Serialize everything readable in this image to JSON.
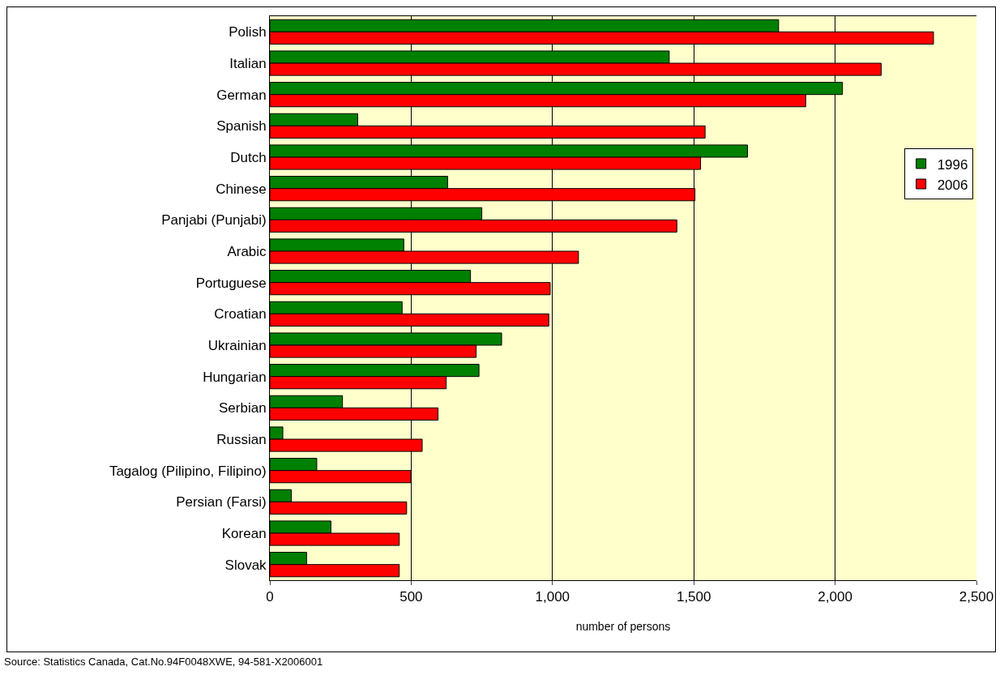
{
  "chart_data": {
    "type": "bar",
    "orientation": "horizontal",
    "xlabel": "number of persons",
    "categories": [
      "Polish",
      "Italian",
      "German",
      "Spanish",
      "Dutch",
      "Chinese",
      "Panjabi (Punjabi)",
      "Arabic",
      "Portuguese",
      "Croatian",
      "Ukrainian",
      "Hungarian",
      "Serbian",
      "Russian",
      "Tagalog (Pilipino, Filipino)",
      "Persian (Farsi)",
      "Korean",
      "Slovak"
    ],
    "series": [
      {
        "name": "1996",
        "color": "#008000",
        "values": [
          1800,
          1413,
          2026,
          311,
          1690,
          629,
          750,
          474,
          710,
          468,
          820,
          740,
          257,
          46,
          166,
          76,
          216,
          130
        ]
      },
      {
        "name": "2006",
        "color": "#ff0000",
        "values": [
          2348,
          2163,
          1896,
          1540,
          1524,
          1504,
          1440,
          1092,
          992,
          987,
          730,
          624,
          595,
          539,
          499,
          484,
          458,
          458
        ]
      }
    ],
    "xlim": [
      0,
      2500
    ],
    "xticks": [
      0,
      {
        "value": 500,
        "label": "500"
      },
      {
        "value": 1000,
        "label": "1,000"
      },
      {
        "value": 1500,
        "label": "1,500"
      },
      {
        "value": 2000,
        "label": "2,000"
      },
      {
        "value": 2500,
        "label": "2,500"
      }
    ],
    "grid": "x",
    "legend": "right",
    "annotations": [
      "Source: Statistics Canada, Cat.No.94F0048XWE, 94-581-X2006001"
    ]
  }
}
